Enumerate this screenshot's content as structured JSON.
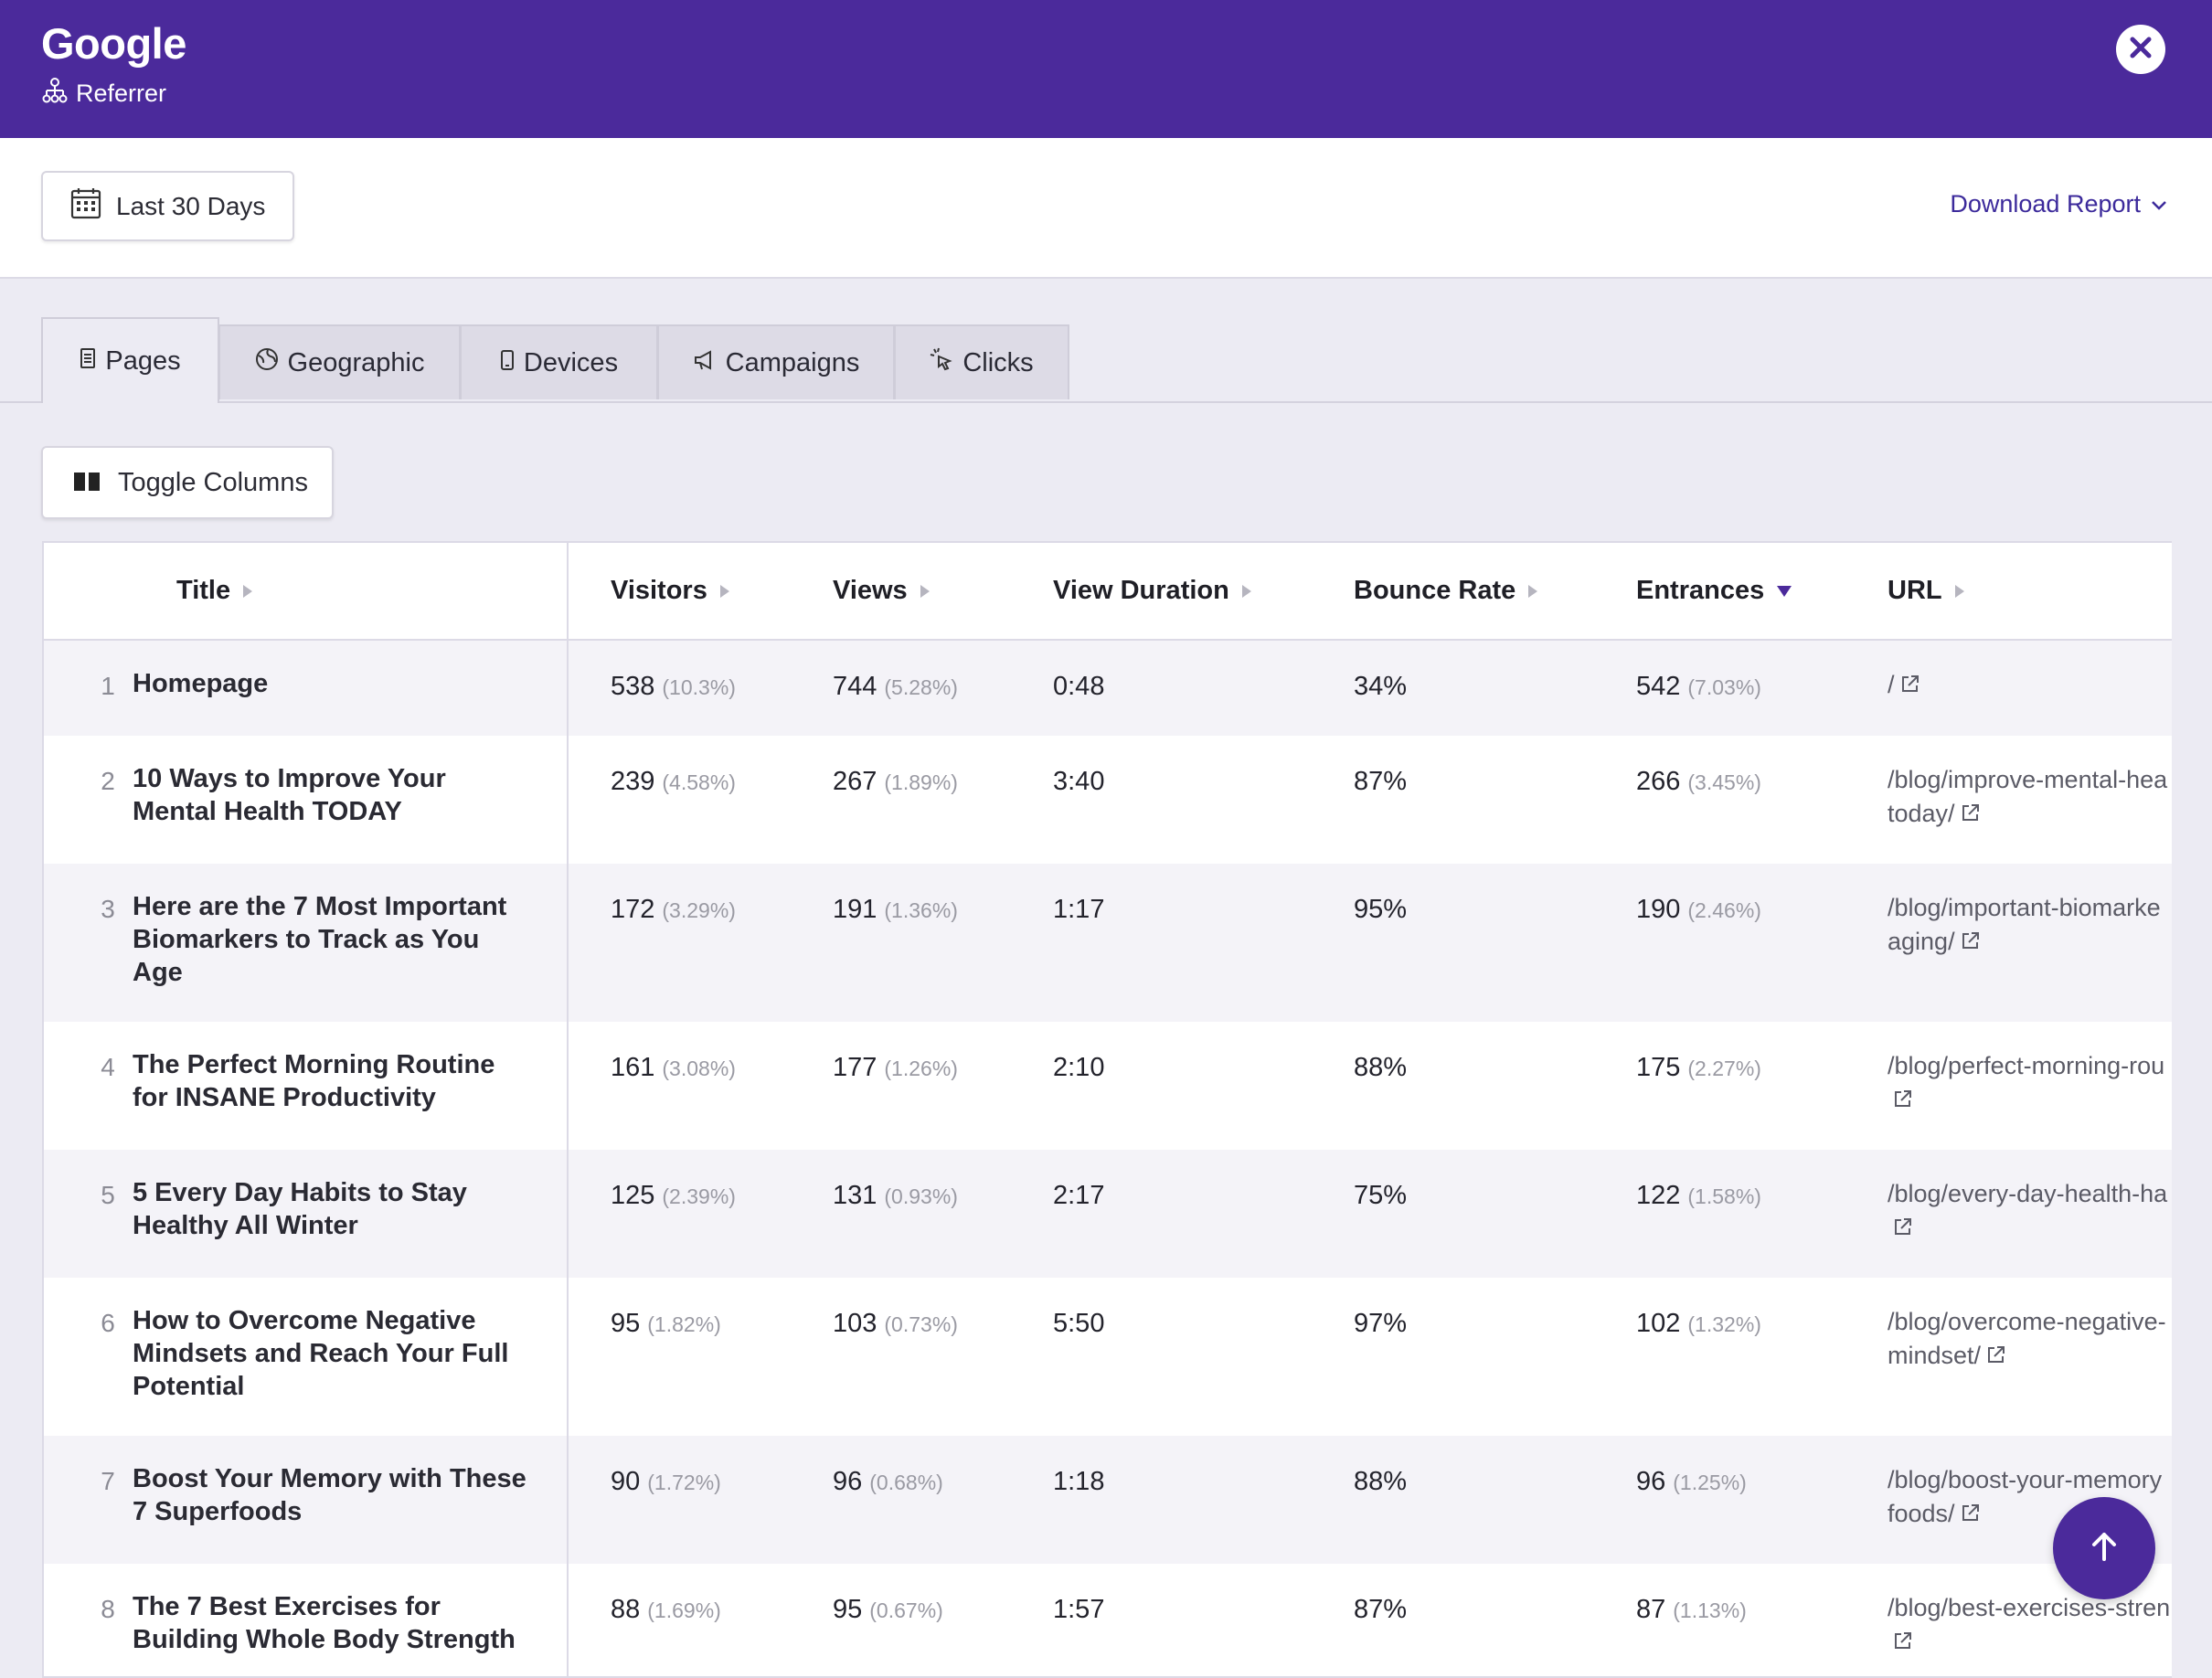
{
  "header": {
    "title": "Google",
    "subtitle": "Referrer"
  },
  "toolbar": {
    "date_range": "Last 30 Days",
    "download_label": "Download Report"
  },
  "tabs": [
    {
      "label": "Pages",
      "icon": "document-icon",
      "active": true
    },
    {
      "label": "Geographic",
      "icon": "globe-icon",
      "active": false
    },
    {
      "label": "Devices",
      "icon": "phone-icon",
      "active": false
    },
    {
      "label": "Campaigns",
      "icon": "megaphone-icon",
      "active": false
    },
    {
      "label": "Clicks",
      "icon": "cursor-click-icon",
      "active": false
    }
  ],
  "toggle_columns_label": "Toggle Columns",
  "table": {
    "columns": [
      "Title",
      "Visitors",
      "Views",
      "View Duration",
      "Bounce Rate",
      "Entrances",
      "URL"
    ],
    "sorted_column": "Entrances",
    "rows": [
      {
        "n": "1",
        "title": "Homepage",
        "visitors": "538",
        "visitors_pct": "(10.3%)",
        "views": "744",
        "views_pct": "(5.28%)",
        "duration": "0:48",
        "bounce": "34%",
        "entrances": "542",
        "entrances_pct": "(7.03%)",
        "url": "/"
      },
      {
        "n": "2",
        "title": "10 Ways to Improve Your Mental Health TODAY",
        "visitors": "239",
        "visitors_pct": "(4.58%)",
        "views": "267",
        "views_pct": "(1.89%)",
        "duration": "3:40",
        "bounce": "87%",
        "entrances": "266",
        "entrances_pct": "(3.45%)",
        "url": "/blog/improve-mental-hea",
        "url2": "today/"
      },
      {
        "n": "3",
        "title": "Here are the 7 Most Important Biomarkers to Track as You Age",
        "visitors": "172",
        "visitors_pct": "(3.29%)",
        "views": "191",
        "views_pct": "(1.36%)",
        "duration": "1:17",
        "bounce": "95%",
        "entrances": "190",
        "entrances_pct": "(2.46%)",
        "url": "/blog/important-biomarke",
        "url2": "aging/"
      },
      {
        "n": "4",
        "title": "The Perfect Morning Routine for INSANE Productivity",
        "visitors": "161",
        "visitors_pct": "(3.08%)",
        "views": "177",
        "views_pct": "(1.26%)",
        "duration": "2:10",
        "bounce": "88%",
        "entrances": "175",
        "entrances_pct": "(2.27%)",
        "url": "/blog/perfect-morning-rou",
        "url2": ""
      },
      {
        "n": "5",
        "title": "5 Every Day Habits to Stay Healthy All Winter",
        "visitors": "125",
        "visitors_pct": "(2.39%)",
        "views": "131",
        "views_pct": "(0.93%)",
        "duration": "2:17",
        "bounce": "75%",
        "entrances": "122",
        "entrances_pct": "(1.58%)",
        "url": "/blog/every-day-health-ha",
        "url2": ""
      },
      {
        "n": "6",
        "title": "How to Overcome Negative Mindsets and Reach Your Full Potential",
        "visitors": "95",
        "visitors_pct": "(1.82%)",
        "views": "103",
        "views_pct": "(0.73%)",
        "duration": "5:50",
        "bounce": "97%",
        "entrances": "102",
        "entrances_pct": "(1.32%)",
        "url": "/blog/overcome-negative-",
        "url2": "mindset/"
      },
      {
        "n": "7",
        "title": "Boost Your Memory with These 7 Superfoods",
        "visitors": "90",
        "visitors_pct": "(1.72%)",
        "views": "96",
        "views_pct": "(0.68%)",
        "duration": "1:18",
        "bounce": "88%",
        "entrances": "96",
        "entrances_pct": "(1.25%)",
        "url": "/blog/boost-your-memory",
        "url2": "foods/"
      },
      {
        "n": "8",
        "title": "The 7 Best Exercises for Building Whole Body Strength",
        "visitors": "88",
        "visitors_pct": "(1.69%)",
        "views": "95",
        "views_pct": "(0.67%)",
        "duration": "1:57",
        "bounce": "87%",
        "entrances": "87",
        "entrances_pct": "(1.13%)",
        "url": "/blog/best-exercises-stren",
        "url2": ""
      }
    ]
  },
  "colors": {
    "accent": "#4b2a9b",
    "background": "#ecebf3"
  }
}
